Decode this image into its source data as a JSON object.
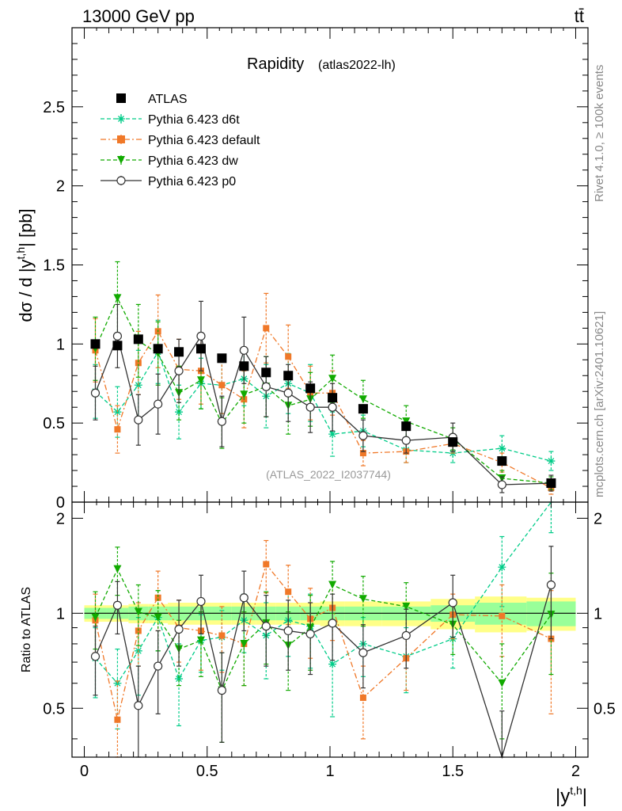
{
  "header": {
    "left": "13000 GeV pp",
    "right": "tt̄"
  },
  "side_labels": {
    "rivet": "Rivet 4.1.0, ≥ 100k events",
    "mcplots": "mcplots.cern.ch [arXiv:2401.10621]"
  },
  "colors": {
    "atlas": "#000000",
    "d6t": "#00cc88",
    "default": "#f07828",
    "dw": "#11aa00",
    "p0": "#333333",
    "band_inner": "#99ff99",
    "band_outer": "#ffff88"
  },
  "chart_data": [
    {
      "type": "line",
      "panel": "main",
      "title": "Rapidity",
      "subtitle": "(atlas2022-lh)",
      "watermark": "(ATLAS_2022_I2037744)",
      "xlabel": "|y^{t,h}|",
      "ylabel": "dσ / d |y^{t,h}| [pb]",
      "xlim": [
        -0.05,
        2.05
      ],
      "ylim": [
        0,
        3.0
      ],
      "xticks": [
        "0",
        "0.5",
        "1",
        "1.5",
        "2"
      ],
      "yticks": [
        "0",
        "0.5",
        "1",
        "1.5",
        "2",
        "2.5"
      ],
      "legend_position": "top-left",
      "x": [
        0.045,
        0.135,
        0.22,
        0.3,
        0.385,
        0.475,
        0.56,
        0.65,
        0.74,
        0.83,
        0.92,
        1.01,
        1.135,
        1.31,
        1.5,
        1.7,
        1.9
      ],
      "series": [
        {
          "name": "ATLAS",
          "key": "atlas",
          "marker": "square",
          "line": "none",
          "values": [
            1.0,
            0.99,
            1.03,
            0.97,
            0.95,
            0.97,
            0.91,
            0.86,
            0.82,
            0.8,
            0.72,
            0.66,
            0.59,
            0.48,
            0.38,
            0.26,
            0.12
          ],
          "errors": [
            0.01,
            0.01,
            0.01,
            0.01,
            0.01,
            0.01,
            0.01,
            0.01,
            0.01,
            0.01,
            0.01,
            0.01,
            0.01,
            0.01,
            0.01,
            0.01,
            0.01
          ]
        },
        {
          "name": "Pythia 6.423 d6t",
          "key": "d6t",
          "marker": "star",
          "line": "dashed",
          "values": [
            0.7,
            0.57,
            0.74,
            0.95,
            0.57,
            0.75,
            0.74,
            0.78,
            0.67,
            0.75,
            0.69,
            0.43,
            0.45,
            0.33,
            0.31,
            0.34,
            0.26
          ],
          "errors": [
            0.17,
            0.16,
            0.22,
            0.2,
            0.17,
            0.16,
            0.18,
            0.17,
            0.2,
            0.19,
            0.18,
            0.14,
            0.1,
            0.08,
            0.06,
            0.08,
            0.06
          ]
        },
        {
          "name": "Pythia 6.423 default",
          "key": "default",
          "marker": "square",
          "line": "dashdot",
          "values": [
            0.96,
            0.46,
            0.88,
            1.08,
            0.84,
            0.83,
            0.74,
            0.65,
            1.1,
            0.92,
            0.69,
            0.69,
            0.31,
            0.32,
            0.37,
            0.25,
            0.09
          ],
          "errors": [
            0.2,
            0.15,
            0.2,
            0.23,
            0.19,
            0.21,
            0.18,
            0.18,
            0.22,
            0.2,
            0.17,
            0.14,
            0.08,
            0.07,
            0.06,
            0.06,
            0.04
          ]
        },
        {
          "name": "Pythia 6.423 dw",
          "key": "dw",
          "marker": "triangle-down",
          "line": "dashed",
          "values": [
            0.97,
            1.29,
            1.02,
            0.94,
            0.69,
            0.77,
            0.5,
            0.68,
            0.73,
            0.61,
            0.65,
            0.78,
            0.65,
            0.51,
            0.4,
            0.15,
            0.12
          ],
          "errors": [
            0.2,
            0.23,
            0.23,
            0.2,
            0.17,
            0.18,
            0.16,
            0.18,
            0.19,
            0.18,
            0.17,
            0.15,
            0.12,
            0.1,
            0.07,
            0.05,
            0.04
          ]
        },
        {
          "name": "Pythia 6.423 p0",
          "key": "p0",
          "marker": "circle-open",
          "line": "solid",
          "values": [
            0.69,
            1.05,
            0.52,
            0.62,
            0.83,
            1.05,
            0.51,
            0.96,
            0.73,
            0.69,
            0.6,
            0.6,
            0.42,
            0.39,
            0.41,
            0.11,
            0.12
          ],
          "errors": [
            0.17,
            0.2,
            0.16,
            0.19,
            0.2,
            0.22,
            0.16,
            0.21,
            0.19,
            0.18,
            0.16,
            0.15,
            0.1,
            0.08,
            0.09,
            0.05,
            0.05
          ]
        }
      ]
    },
    {
      "type": "line",
      "panel": "ratio",
      "ylabel": "Ratio to ATLAS",
      "xlabel": "|y^{t,h}|",
      "xlim": [
        -0.05,
        2.05
      ],
      "ylim": [
        0.35,
        2.25
      ],
      "yticks": [
        "0.5",
        "1",
        "2"
      ],
      "reference": 1,
      "band_edges": [
        0.0,
        0.09,
        0.18,
        0.26,
        0.34,
        0.43,
        0.52,
        0.6,
        0.7,
        0.78,
        0.88,
        0.96,
        1.06,
        1.21,
        1.41,
        1.59,
        1.8,
        2.0
      ],
      "band_inner": [
        0.04,
        0.04,
        0.05,
        0.05,
        0.05,
        0.05,
        0.05,
        0.05,
        0.05,
        0.05,
        0.05,
        0.05,
        0.05,
        0.05,
        0.06,
        0.08,
        0.09
      ],
      "band_outer": [
        0.06,
        0.06,
        0.07,
        0.07,
        0.08,
        0.08,
        0.08,
        0.08,
        0.08,
        0.08,
        0.08,
        0.09,
        0.09,
        0.09,
        0.11,
        0.13,
        0.12
      ],
      "x": [
        0.045,
        0.135,
        0.22,
        0.3,
        0.385,
        0.475,
        0.56,
        0.65,
        0.74,
        0.83,
        0.92,
        1.01,
        1.135,
        1.31,
        1.5,
        1.7,
        1.9
      ],
      "series": [
        {
          "name": "Pythia 6.423 d6t",
          "key": "d6t",
          "marker": "star",
          "line": "dashed",
          "values": [
            0.72,
            0.6,
            0.76,
            0.97,
            0.62,
            0.82,
            0.84,
            0.95,
            0.85,
            0.95,
            0.91,
            0.69,
            0.8,
            0.73,
            0.83,
            1.4,
            2.3
          ],
          "errors": [
            0.18,
            0.17,
            0.21,
            0.21,
            0.18,
            0.17,
            0.18,
            0.2,
            0.23,
            0.22,
            0.24,
            0.22,
            0.17,
            0.17,
            0.16,
            0.35,
            0.5
          ]
        },
        {
          "name": "Pythia 6.423 default",
          "key": "default",
          "marker": "square",
          "line": "dashdot",
          "values": [
            0.95,
            0.46,
            0.88,
            1.12,
            0.9,
            0.88,
            0.85,
            0.8,
            1.43,
            1.17,
            0.96,
            1.04,
            0.54,
            0.72,
            0.99,
            0.98,
            0.83
          ],
          "errors": [
            0.2,
            0.15,
            0.2,
            0.24,
            0.2,
            0.22,
            0.2,
            0.21,
            0.27,
            0.25,
            0.24,
            0.22,
            0.14,
            0.15,
            0.16,
            0.25,
            0.35
          ]
        },
        {
          "name": "Pythia 6.423 dw",
          "key": "dw",
          "marker": "triangle-down",
          "line": "dashed",
          "values": [
            0.97,
            1.38,
            1.01,
            0.97,
            0.77,
            0.82,
            0.57,
            0.8,
            0.93,
            0.79,
            0.9,
            1.23,
            1.11,
            1.05,
            0.92,
            0.6,
            0.99
          ],
          "errors": [
            0.2,
            0.24,
            0.22,
            0.21,
            0.18,
            0.19,
            0.18,
            0.21,
            0.24,
            0.22,
            0.24,
            0.23,
            0.2,
            0.2,
            0.18,
            0.2,
            0.35
          ]
        },
        {
          "name": "Pythia 6.423 p0",
          "key": "p0",
          "marker": "circle-open",
          "line": "solid",
          "values": [
            0.73,
            1.06,
            0.51,
            0.68,
            0.89,
            1.09,
            0.57,
            1.12,
            0.91,
            0.88,
            0.86,
            0.93,
            0.75,
            0.85,
            1.08,
            0.34,
            1.23
          ],
          "errors": [
            0.18,
            0.2,
            0.17,
            0.2,
            0.21,
            0.23,
            0.18,
            0.24,
            0.23,
            0.22,
            0.22,
            0.22,
            0.17,
            0.18,
            0.24,
            0.15,
            0.4
          ]
        }
      ]
    }
  ]
}
